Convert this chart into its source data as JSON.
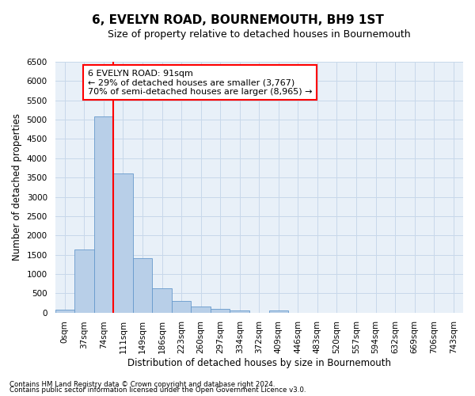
{
  "title": "6, EVELYN ROAD, BOURNEMOUTH, BH9 1ST",
  "subtitle": "Size of property relative to detached houses in Bournemouth",
  "xlabel": "Distribution of detached houses by size in Bournemouth",
  "ylabel": "Number of detached properties",
  "footnote1": "Contains HM Land Registry data © Crown copyright and database right 2024.",
  "footnote2": "Contains public sector information licensed under the Open Government Licence v3.0.",
  "bar_labels": [
    "0sqm",
    "37sqm",
    "74sqm",
    "111sqm",
    "149sqm",
    "186sqm",
    "223sqm",
    "260sqm",
    "297sqm",
    "334sqm",
    "372sqm",
    "409sqm",
    "446sqm",
    "483sqm",
    "520sqm",
    "557sqm",
    "594sqm",
    "632sqm",
    "669sqm",
    "706sqm",
    "743sqm"
  ],
  "bar_values": [
    75,
    1640,
    5080,
    3600,
    1400,
    620,
    300,
    150,
    100,
    60,
    0,
    55,
    0,
    0,
    0,
    0,
    0,
    0,
    0,
    0,
    0
  ],
  "bar_color": "#b8cfe8",
  "bar_edge_color": "#6699cc",
  "vline_x": 2.5,
  "vline_color": "red",
  "annotation_text": "6 EVELYN ROAD: 91sqm\n← 29% of detached houses are smaller (3,767)\n70% of semi-detached houses are larger (8,965) →",
  "annotation_box_color": "white",
  "annotation_box_edge_color": "red",
  "ylim": [
    0,
    6500
  ],
  "yticks": [
    0,
    500,
    1000,
    1500,
    2000,
    2500,
    3000,
    3500,
    4000,
    4500,
    5000,
    5500,
    6000,
    6500
  ],
  "grid_color": "#c8d8ea",
  "bg_color": "#e8f0f8",
  "title_fontsize": 11,
  "subtitle_fontsize": 9,
  "axis_label_fontsize": 8.5,
  "tick_fontsize": 7.5,
  "annotation_fontsize": 8
}
